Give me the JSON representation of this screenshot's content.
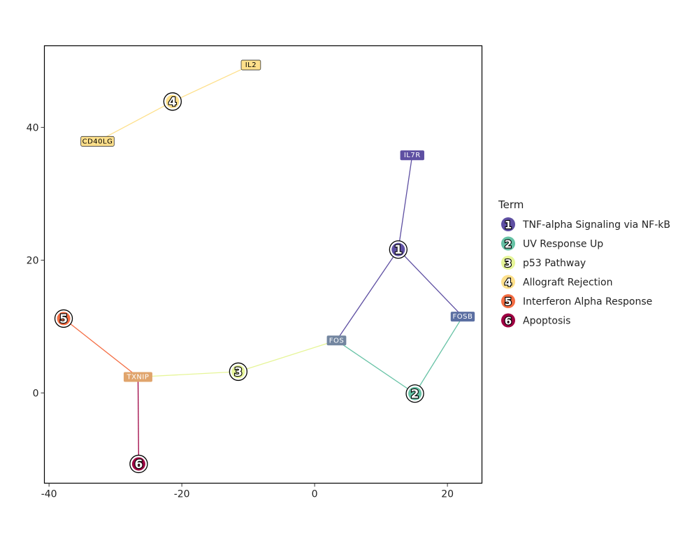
{
  "chart_data": {
    "type": "network",
    "title": "",
    "xlabel": "",
    "ylabel": "",
    "xlim": [
      -40.7,
      25.2
    ],
    "ylim": [
      -13.6,
      52.3
    ],
    "x_ticks": [
      -40,
      -20,
      0,
      20
    ],
    "y_ticks": [
      0,
      20,
      40
    ],
    "grid": false,
    "legend": {
      "title": "Term",
      "placement": "right",
      "entries": [
        {
          "id": "1",
          "label": "TNF-alpha Signaling via NF-kB",
          "color": "#5E4FA2"
        },
        {
          "id": "2",
          "label": "UV Response Up",
          "color": "#66C2A5"
        },
        {
          "id": "3",
          "label": "p53 Pathway",
          "color": "#E6F598"
        },
        {
          "id": "4",
          "label": "Allograft Rejection",
          "color": "#FEE08B"
        },
        {
          "id": "5",
          "label": "Interferon Alpha Response",
          "color": "#F46D43"
        },
        {
          "id": "6",
          "label": "Apoptosis",
          "color": "#9E0142"
        }
      ]
    },
    "term_nodes": [
      {
        "id": "1",
        "x": 12.6,
        "y": 21.6
      },
      {
        "id": "2",
        "x": 15.1,
        "y": -0.1
      },
      {
        "id": "3",
        "x": -11.5,
        "y": 3.2
      },
      {
        "id": "4",
        "x": -21.4,
        "y": 43.9
      },
      {
        "id": "5",
        "x": -37.8,
        "y": 11.2
      },
      {
        "id": "6",
        "x": -26.5,
        "y": -10.7
      }
    ],
    "gene_nodes": [
      {
        "id": "IL7R",
        "x": 14.7,
        "y": 35.8,
        "fill": "#5E4FA2",
        "text": "#ffffff"
      },
      {
        "id": "FOSB",
        "x": 22.3,
        "y": 11.5,
        "fill": "#5B6FA2",
        "text": "#ffffff"
      },
      {
        "id": "FOS",
        "x": 3.3,
        "y": 7.9,
        "fill": "#7386A0",
        "text": "#ffffff"
      },
      {
        "id": "TXNIP",
        "x": -26.6,
        "y": 2.4,
        "fill": "#E0A46C",
        "text": "#ffffff"
      },
      {
        "id": "IL2",
        "x": -9.6,
        "y": 49.4,
        "fill": "#FEE08B",
        "text": "#000000"
      },
      {
        "id": "CD40LG",
        "x": -32.7,
        "y": 37.9,
        "fill": "#FEE08B",
        "text": "#000000"
      }
    ],
    "edges": [
      {
        "term": "1",
        "gene": "IL7R"
      },
      {
        "term": "1",
        "gene": "FOS"
      },
      {
        "term": "1",
        "gene": "FOSB"
      },
      {
        "term": "2",
        "gene": "FOS"
      },
      {
        "term": "2",
        "gene": "FOSB"
      },
      {
        "term": "3",
        "gene": "FOS"
      },
      {
        "term": "3",
        "gene": "TXNIP"
      },
      {
        "term": "4",
        "gene": "IL2"
      },
      {
        "term": "4",
        "gene": "CD40LG"
      },
      {
        "term": "5",
        "gene": "TXNIP"
      },
      {
        "term": "6",
        "gene": "TXNIP"
      }
    ]
  }
}
